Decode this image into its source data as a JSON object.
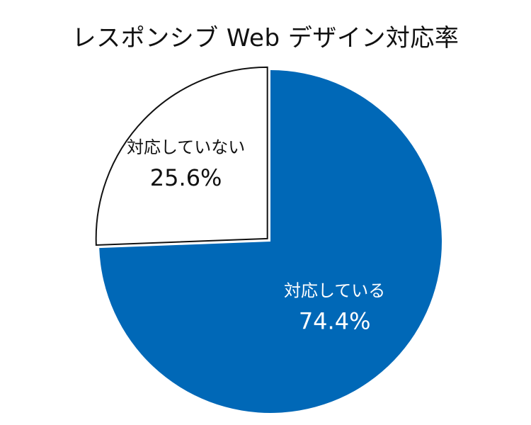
{
  "chart_data": {
    "type": "pie",
    "title": "レスポンシブ Web デザイン対応率",
    "slices": [
      {
        "label": "対応している",
        "value": 74.4,
        "value_label": "74.4%",
        "color": "#0068b7",
        "text_color": "#ffffff"
      },
      {
        "label": "対応していない",
        "value": 25.6,
        "value_label": "25.6%",
        "color": "#ffffff",
        "text_color": "#111111"
      }
    ],
    "start": "12 o'clock",
    "direction": "clockwise",
    "outline_color": "#111111",
    "exploded_slice": "対応していない",
    "legend": "none"
  }
}
